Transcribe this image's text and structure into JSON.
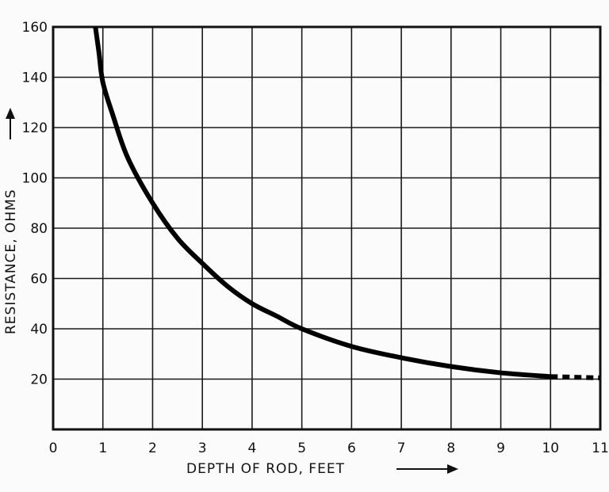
{
  "chart_data": {
    "type": "line",
    "title": "",
    "xlabel": "DEPTH OF ROD, FEET",
    "ylabel": "RESISTANCE, OHMS",
    "xlim": [
      0,
      11
    ],
    "ylim": [
      0,
      160
    ],
    "x_ticks": [
      "0",
      "1",
      "2",
      "3",
      "4",
      "5",
      "6",
      "7",
      "8",
      "9",
      "10",
      "11"
    ],
    "y_ticks": [
      "20",
      "40",
      "60",
      "80",
      "100",
      "120",
      "140",
      "160"
    ],
    "grid": true,
    "series": [
      {
        "style": "solid",
        "x": [
          0.85,
          0.92,
          1.0,
          1.2,
          1.5,
          2.0,
          2.5,
          3.0,
          3.5,
          4.0,
          4.5,
          5.0,
          6.0,
          7.0,
          8.0,
          9.0,
          10.0
        ],
        "y": [
          160,
          150,
          138,
          125,
          108,
          90,
          76,
          66,
          57,
          50,
          45,
          40,
          33,
          28.5,
          25,
          22.5,
          21
        ]
      },
      {
        "style": "dashed",
        "x": [
          10.0,
          11.0
        ],
        "y": [
          21,
          20.5
        ]
      }
    ],
    "colors": {
      "line": "#000000",
      "grid": "#1a1a1a",
      "background": "#fbfbfb"
    }
  }
}
